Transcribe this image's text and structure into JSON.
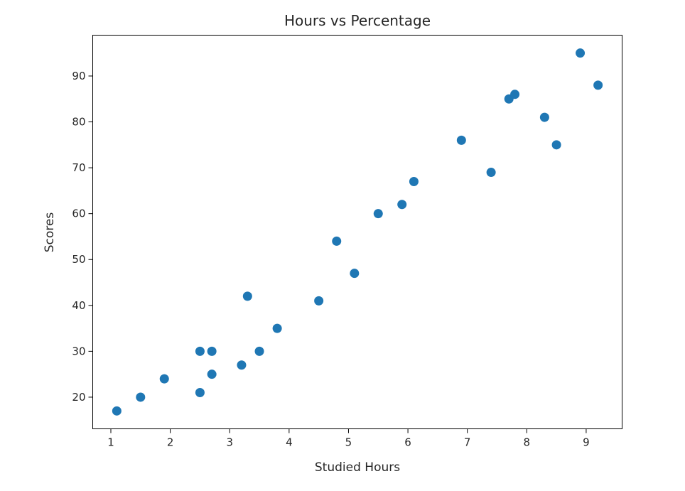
{
  "chart_data": {
    "type": "scatter",
    "title": "Hours vs Percentage",
    "xlabel": "Studied Hours",
    "ylabel": "Scores",
    "xlim": [
      0.695,
      9.605
    ],
    "ylim": [
      13.1,
      98.9
    ],
    "xticks": [
      1,
      2,
      3,
      4,
      5,
      6,
      7,
      8,
      9
    ],
    "yticks": [
      20,
      30,
      40,
      50,
      60,
      70,
      80,
      90
    ],
    "grid": false,
    "marker_color": "#1f77b4",
    "x": [
      2.5,
      5.1,
      3.2,
      8.5,
      3.5,
      1.5,
      9.2,
      5.5,
      8.3,
      2.7,
      7.7,
      5.9,
      4.5,
      3.3,
      1.1,
      8.9,
      2.5,
      1.9,
      6.1,
      7.4,
      2.7,
      4.8,
      3.8,
      6.9,
      7.8
    ],
    "y": [
      21,
      47,
      27,
      75,
      30,
      20,
      88,
      60,
      81,
      25,
      85,
      62,
      41,
      42,
      17,
      95,
      30,
      24,
      67,
      69,
      30,
      54,
      35,
      76,
      86
    ]
  }
}
